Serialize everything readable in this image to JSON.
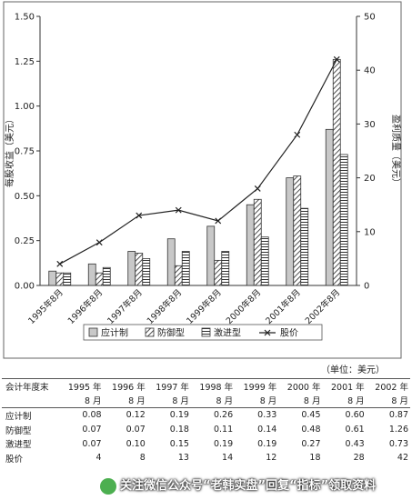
{
  "chart_data": {
    "type": "bar",
    "categories": [
      "1995年8月",
      "1996年8月",
      "1997年8月",
      "1998年8月",
      "1999年8月",
      "2000年8月",
      "2001年8月",
      "2002年8月"
    ],
    "series": [
      {
        "name": "应计制",
        "values": [
          0.08,
          0.12,
          0.19,
          0.26,
          0.33,
          0.45,
          0.6,
          0.87
        ],
        "pattern": "light-gray"
      },
      {
        "name": "防御型",
        "values": [
          0.07,
          0.07,
          0.18,
          0.11,
          0.14,
          0.48,
          0.61,
          1.26
        ],
        "pattern": "diagonal-hatch"
      },
      {
        "name": "激进型",
        "values": [
          0.07,
          0.1,
          0.15,
          0.19,
          0.19,
          0.27,
          0.43,
          0.73
        ],
        "pattern": "horizontal-hatch"
      }
    ],
    "line_series": {
      "name": "股价",
      "values": [
        4,
        8,
        13,
        14,
        12,
        18,
        28,
        42
      ],
      "axis": "right"
    },
    "ylabel_left": "每股收益（美元）",
    "ylabel_right": "盈利质量（美元）",
    "ylim_left": [
      0,
      1.5
    ],
    "ylim_right": [
      0,
      50
    ],
    "yticks_left": [
      "0.00",
      "0.25",
      "0.50",
      "0.75",
      "1.00",
      "1.25",
      "1.50"
    ],
    "yticks_right": [
      "0",
      "10",
      "20",
      "30",
      "40",
      "50"
    ],
    "legend_position": "bottom",
    "grid": false
  },
  "unit_note": "（单位：美元）",
  "table": {
    "header_label": "会计年度末",
    "years": [
      "1995 年",
      "1996 年",
      "1997 年",
      "1998 年",
      "1999 年",
      "2000 年",
      "2001 年",
      "2002 年"
    ],
    "month": "8 月",
    "rows": [
      {
        "label": "应计制",
        "values": [
          "0.08",
          "0.12",
          "0.19",
          "0.26",
          "0.33",
          "0.45",
          "0.60",
          "0.87"
        ]
      },
      {
        "label": "防御型",
        "values": [
          "0.07",
          "0.07",
          "0.18",
          "0.11",
          "0.14",
          "0.48",
          "0.61",
          "1.26"
        ]
      },
      {
        "label": "激进型",
        "values": [
          "0.07",
          "0.10",
          "0.15",
          "0.19",
          "0.19",
          "0.27",
          "0.43",
          "0.73"
        ]
      },
      {
        "label": "股价",
        "values": [
          "4",
          "8",
          "13",
          "14",
          "12",
          "18",
          "28",
          "42"
        ]
      }
    ]
  },
  "watermark": "关注微信公众号“老韩实盘”回复“指标”领取资料"
}
